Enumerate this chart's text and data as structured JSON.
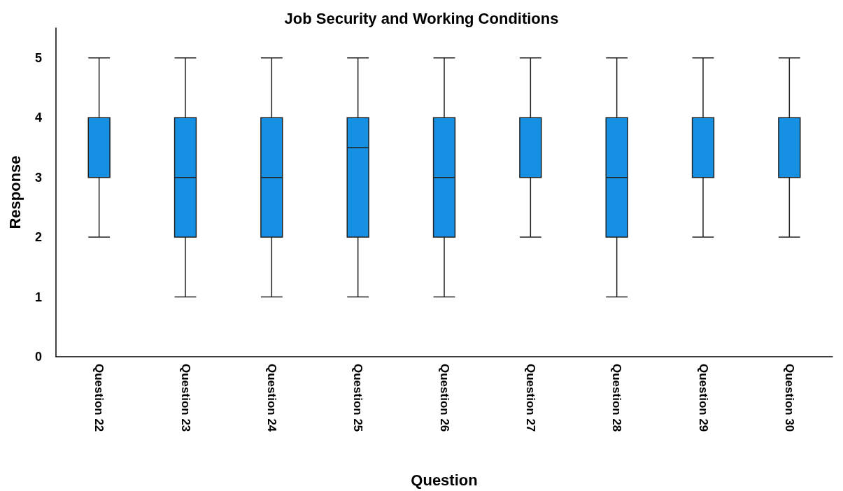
{
  "chart_data": {
    "type": "box",
    "title": "Job Security and Working Conditions",
    "xlabel": "Question",
    "ylabel": "Response",
    "categories": [
      "Question 22",
      "Question 23",
      "Question 24",
      "Question 25",
      "Question 26",
      "Question 27",
      "Question 28",
      "Question 29",
      "Question 30"
    ],
    "color": "#1690e3",
    "boxes": [
      {
        "low": 2,
        "q1": 3,
        "median": 4,
        "q3": 4,
        "high": 5
      },
      {
        "low": 1,
        "q1": 2,
        "median": 3,
        "q3": 4,
        "high": 5
      },
      {
        "low": 1,
        "q1": 2,
        "median": 3,
        "q3": 4,
        "high": 5
      },
      {
        "low": 1,
        "q1": 2,
        "median": 3.5,
        "q3": 4,
        "high": 5
      },
      {
        "low": 1,
        "q1": 2,
        "median": 3,
        "q3": 4,
        "high": 5
      },
      {
        "low": 2,
        "q1": 3,
        "median": 3,
        "q3": 4,
        "high": 5
      },
      {
        "low": 1,
        "q1": 2,
        "median": 3,
        "q3": 4,
        "high": 5
      },
      {
        "low": 2,
        "q1": 3,
        "median": 3,
        "q3": 4,
        "high": 5
      },
      {
        "low": 2,
        "q1": 3,
        "median": 4,
        "q3": 4,
        "high": 5
      }
    ],
    "ylim": [
      0,
      5.5
    ],
    "yticks": [
      0,
      1,
      2,
      3,
      4,
      5
    ],
    "grid": false
  }
}
